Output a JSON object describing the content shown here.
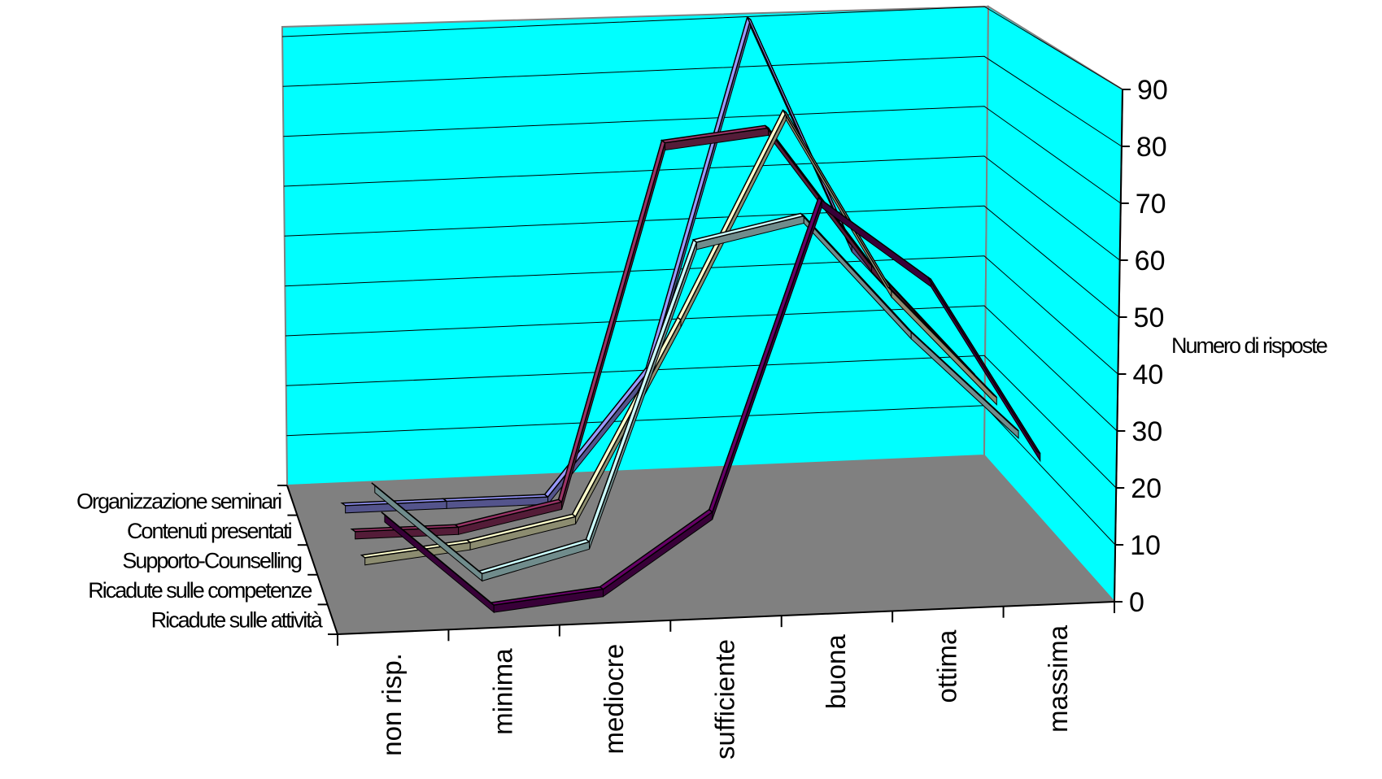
{
  "chart_data": {
    "type": "line",
    "subtype": "3d-line",
    "categories": [
      "non risp.",
      "minima",
      "mediocre",
      "sufficiente",
      "buona",
      "ottima",
      "massima"
    ],
    "series": [
      {
        "name": "Organizzazione seminari",
        "color": "#9999ff",
        "values": [
          0,
          0,
          0,
          24,
          92,
          47,
          25
        ]
      },
      {
        "name": "Contenuti presentati",
        "color": "#993366",
        "values": [
          0,
          0,
          4,
          72,
          74,
          47,
          25
        ]
      },
      {
        "name": "Supporto-Counselling",
        "color": "#ffffcc",
        "values": [
          0,
          2,
          6,
          42,
          80,
          46,
          25
        ]
      },
      {
        "name": "Ricadute sulle competenze",
        "color": "#ccffff",
        "values": [
          18,
          1,
          6,
          60,
          64,
          42,
          23
        ]
      },
      {
        "name": "Ricadute sulle attività",
        "color": "#660066",
        "values": [
          17,
          0,
          2,
          15,
          70,
          55,
          23
        ]
      }
    ],
    "ylabel": "Numero di risposte",
    "ylim": [
      0,
      90
    ],
    "yticks": [
      0,
      10,
      20,
      30,
      40,
      50,
      60,
      70,
      80,
      90
    ],
    "wall_color": "#00ffff",
    "floor_color": "#808080",
    "grid": true
  }
}
